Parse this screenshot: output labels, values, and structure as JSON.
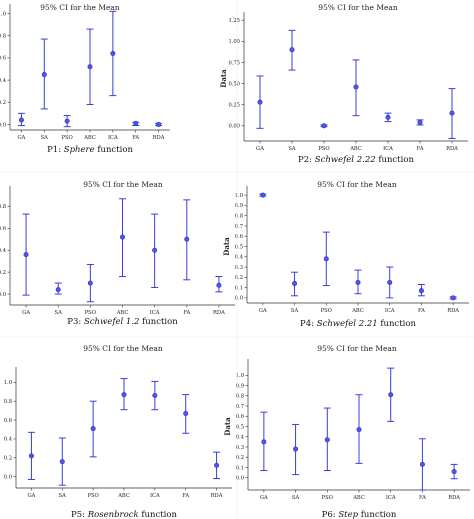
{
  "chart_data": [
    {
      "type": "errorbar",
      "title": "95% CI for the Mean",
      "ylabel": "Data",
      "caption_prefix": "P1: ",
      "caption_name": "Sphere",
      "caption_suffix": " function",
      "categories": [
        "GA",
        "SA",
        "PSO",
        "ABC",
        "ICA",
        "FA",
        "RDA"
      ],
      "ylim": [
        -0.05,
        1.05
      ],
      "yticks": [
        0.0,
        0.2,
        0.4,
        0.6,
        0.8,
        1.0
      ],
      "ytick_labels": [
        "0.0",
        "0.2",
        "0.4",
        "0.6",
        "0.8",
        "1.0"
      ],
      "mean": [
        0.04,
        0.45,
        0.03,
        0.52,
        0.64,
        0.01,
        0.0
      ],
      "lower": [
        -0.01,
        0.14,
        -0.02,
        0.18,
        0.26,
        -0.01,
        -0.01
      ],
      "upper": [
        0.1,
        0.77,
        0.08,
        0.86,
        1.02,
        0.02,
        0.01
      ]
    },
    {
      "type": "errorbar",
      "title": "95% CI for the Mean",
      "ylabel": "Data",
      "caption_prefix": "P2: ",
      "caption_name": "Schwefel 2.22",
      "caption_suffix": " function",
      "categories": [
        "GA",
        "SA",
        "PSO",
        "ABC",
        "ICA",
        "FA",
        "RDA"
      ],
      "ylim": [
        -0.18,
        1.3
      ],
      "yticks": [
        0.0,
        0.25,
        0.5,
        0.75,
        1.0,
        1.25
      ],
      "ytick_labels": [
        "0.00",
        "0.25",
        "0.50",
        "0.75",
        "1.00",
        "1.25"
      ],
      "mean": [
        0.28,
        0.9,
        0.0,
        0.46,
        0.1,
        0.04,
        0.15
      ],
      "lower": [
        -0.03,
        0.66,
        -0.01,
        0.12,
        0.05,
        0.01,
        -0.15
      ],
      "upper": [
        0.59,
        1.13,
        0.01,
        0.78,
        0.15,
        0.07,
        0.44
      ]
    },
    {
      "type": "errorbar",
      "title": "95% CI for the Mean",
      "ylabel": "Data",
      "caption_prefix": "P3: ",
      "caption_name": "Schwefel 1.2",
      "caption_suffix": " function",
      "categories": [
        "GA",
        "SA",
        "PSO",
        "ABC",
        "ICA",
        "FA",
        "RDA"
      ],
      "ylim": [
        -0.1,
        0.95
      ],
      "yticks": [
        0.0,
        0.2,
        0.4,
        0.6,
        0.8
      ],
      "ytick_labels": [
        "0.0",
        "0.2",
        "0.4",
        "0.6",
        "0.8"
      ],
      "mean": [
        0.36,
        0.04,
        0.1,
        0.52,
        0.4,
        0.5,
        0.08
      ],
      "lower": [
        -0.01,
        0.0,
        -0.07,
        0.16,
        0.06,
        0.13,
        0.02
      ],
      "upper": [
        0.73,
        0.1,
        0.27,
        0.87,
        0.73,
        0.86,
        0.16
      ]
    },
    {
      "type": "errorbar",
      "title": "95% CI for the Mean",
      "ylabel": "Data",
      "caption_prefix": "P4: ",
      "caption_name": "Schwefel 2.21",
      "caption_suffix": " function",
      "categories": [
        "GA",
        "SA",
        "PSO",
        "ABC",
        "ICA",
        "FA",
        "RDA"
      ],
      "ylim": [
        -0.05,
        1.05
      ],
      "yticks": [
        0.0,
        0.1,
        0.2,
        0.3,
        0.4,
        0.5,
        0.6,
        0.7,
        0.8,
        0.9,
        1.0
      ],
      "ytick_labels": [
        "0.0",
        "0.1",
        "0.2",
        "0.3",
        "0.4",
        "0.5",
        "0.6",
        "0.7",
        "0.8",
        "0.9",
        "1.0"
      ],
      "mean": [
        1.0,
        0.14,
        0.38,
        0.15,
        0.15,
        0.07,
        0.0
      ],
      "lower": [
        0.99,
        0.02,
        0.12,
        0.04,
        0.0,
        0.02,
        -0.01
      ],
      "upper": [
        1.01,
        0.25,
        0.64,
        0.27,
        0.3,
        0.13,
        0.01
      ]
    },
    {
      "type": "errorbar",
      "title": "95% CI for the Mean",
      "ylabel": "Data",
      "caption_prefix": "P5: ",
      "caption_name": "Rosenbrock",
      "caption_suffix": " function",
      "categories": [
        "GA",
        "SA",
        "PSO",
        "ABC",
        "ICA",
        "FA",
        "RDA"
      ],
      "ylim": [
        -0.12,
        1.12
      ],
      "yticks": [
        0.0,
        0.2,
        0.4,
        0.6,
        0.8,
        1.0
      ],
      "ytick_labels": [
        "0.0",
        "0.2",
        "0.4",
        "0.6",
        "0.8",
        "1.0"
      ],
      "mean": [
        0.22,
        0.16,
        0.51,
        0.87,
        0.86,
        0.67,
        0.12
      ],
      "lower": [
        -0.03,
        -0.09,
        0.21,
        0.71,
        0.71,
        0.46,
        -0.02
      ],
      "upper": [
        0.47,
        0.41,
        0.8,
        1.04,
        1.01,
        0.87,
        0.26
      ]
    },
    {
      "type": "errorbar",
      "title": "95% CI for the Mean",
      "ylabel": "Data",
      "caption_prefix": "P6: ",
      "caption_name": "Step",
      "caption_suffix": " function",
      "categories": [
        "GA",
        "SA",
        "PSO",
        "ABC",
        "ICA",
        "FA",
        "RDA"
      ],
      "ylim": [
        -0.12,
        1.12
      ],
      "yticks": [
        0.0,
        0.1,
        0.2,
        0.3,
        0.4,
        0.5,
        0.6,
        0.7,
        0.8,
        0.9,
        1.0
      ],
      "ytick_labels": [
        "0.0",
        "0.1",
        "0.2",
        "0.3",
        "0.4",
        "0.5",
        "0.6",
        "0.7",
        "0.8",
        "0.9",
        "1.0"
      ],
      "mean": [
        0.35,
        0.28,
        0.37,
        0.47,
        0.81,
        0.13,
        0.06
      ],
      "lower": [
        0.07,
        0.03,
        0.07,
        0.14,
        0.55,
        -0.12,
        -0.01
      ],
      "upper": [
        0.64,
        0.52,
        0.68,
        0.81,
        1.07,
        0.38,
        0.13
      ]
    }
  ]
}
